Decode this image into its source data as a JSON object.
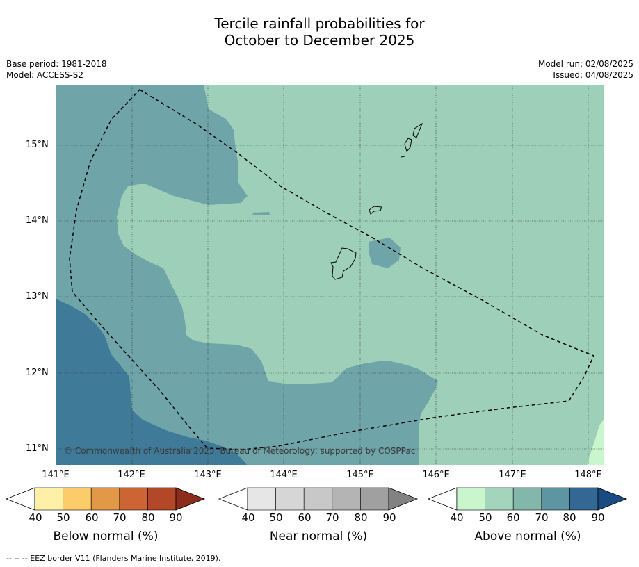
{
  "title": {
    "line1": "Tercile rainfall probabilities for",
    "line2": "October to December 2025"
  },
  "meta": {
    "base_period": "Base period: 1981-2018",
    "model": "Model: ACCESS-S2",
    "model_run": "Model run: 02/08/2025",
    "issued": "Issued: 04/08/2025"
  },
  "map": {
    "lat_ticks": [
      "15°N",
      "14°N",
      "13°N",
      "12°N",
      "11°N"
    ],
    "lon_ticks": [
      "141°E",
      "142°E",
      "143°E",
      "144°E",
      "145°E",
      "146°E",
      "147°E",
      "148°E"
    ],
    "copyright": "© Commonwealth of Australia 2025, Bureau of Meteorology, supported by COSPPac",
    "colors": {
      "above_50": "#9ecfb8",
      "above_70": "#6fa4a8",
      "above_80": "#3f7a98",
      "above_40": "#c9f6cc"
    }
  },
  "colorbars": [
    {
      "label": "Below normal (%)",
      "ticks": [
        "40",
        "50",
        "60",
        "70",
        "80",
        "90"
      ],
      "colors": [
        "#fff0a8",
        "#fdcc6a",
        "#e39848",
        "#cc6434",
        "#b24828",
        "#8c2c1a"
      ]
    },
    {
      "label": "Near normal (%)",
      "ticks": [
        "40",
        "50",
        "60",
        "70",
        "80",
        "90"
      ],
      "colors": [
        "#e6e6e6",
        "#d6d6d6",
        "#c8c8c8",
        "#b4b4b4",
        "#a0a0a0",
        "#828282"
      ]
    },
    {
      "label": "Above normal (%)",
      "ticks": [
        "40",
        "50",
        "60",
        "70",
        "80",
        "90"
      ],
      "colors": [
        "#c9f6cc",
        "#a3d5bc",
        "#84b7ac",
        "#5e95a3",
        "#336894",
        "#1a4a82"
      ]
    }
  ],
  "footer": "--  --  -- EEZ border V11 (Flanders Marine Institute, 2019)."
}
